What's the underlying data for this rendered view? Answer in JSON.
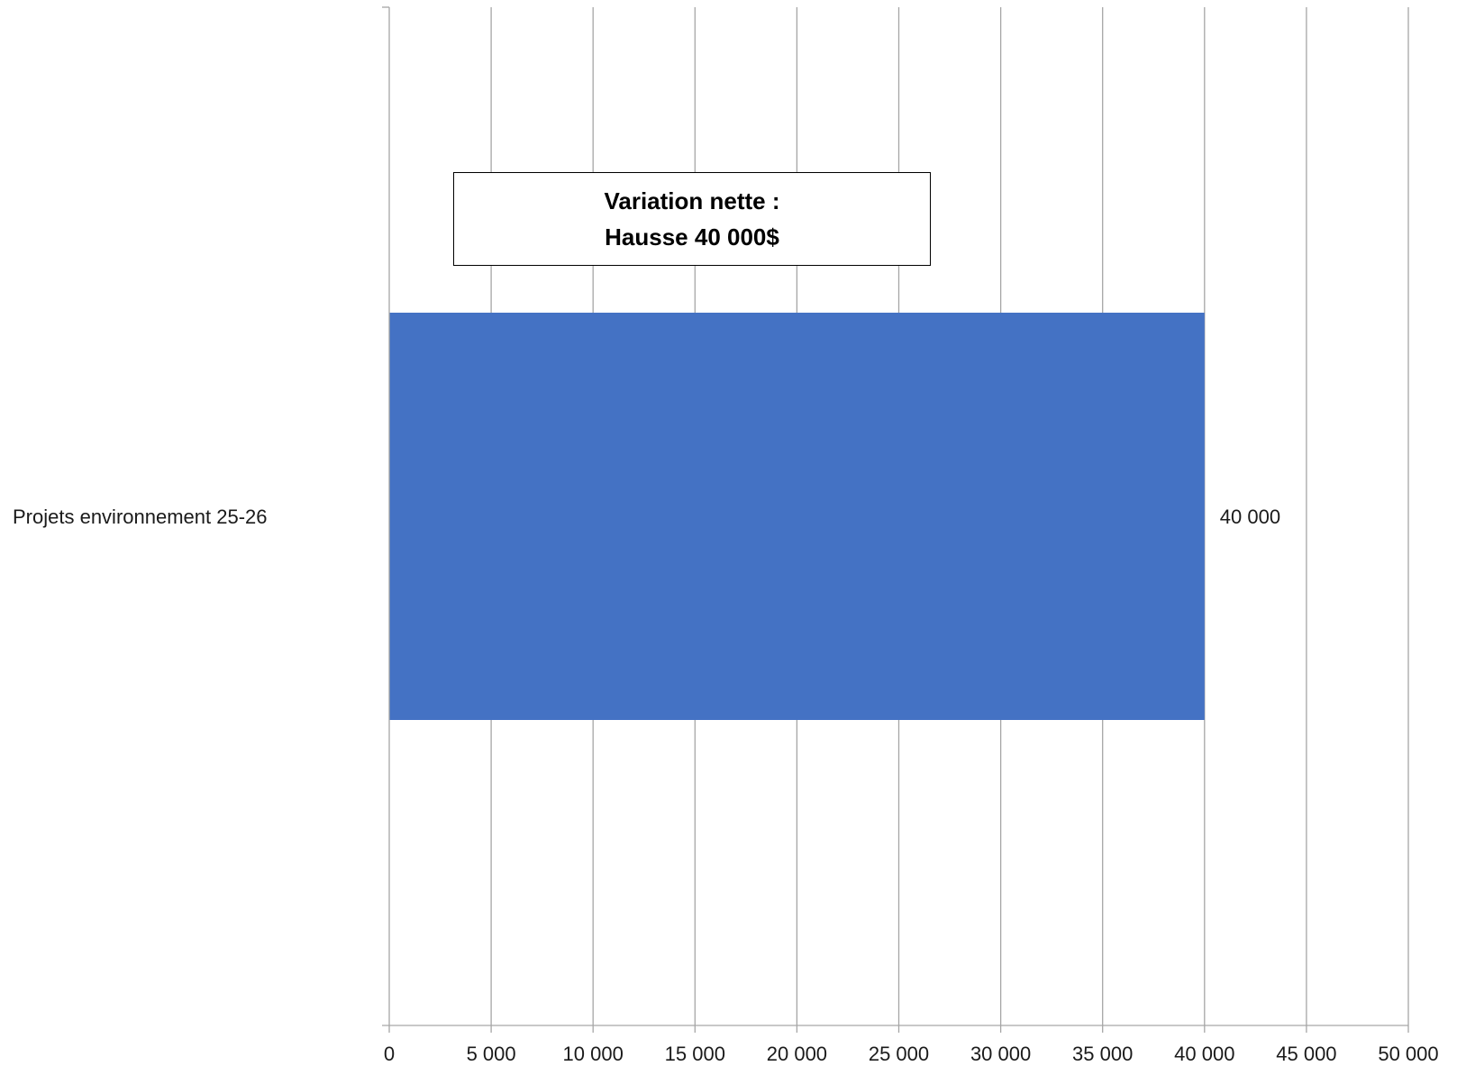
{
  "chart_data": {
    "type": "bar",
    "orientation": "horizontal",
    "categories": [
      "Projets environnement 25-26"
    ],
    "series": [
      {
        "values": [
          40000
        ],
        "color": "#4472C4"
      }
    ],
    "data_labels": [
      "40 000"
    ],
    "x_ticks": [
      0,
      5000,
      10000,
      15000,
      20000,
      25000,
      30000,
      35000,
      40000,
      45000,
      50000
    ],
    "x_tick_labels": [
      "0",
      "5 000",
      "10 000",
      "15 000",
      "20 000",
      "25 000",
      "30 000",
      "35 000",
      "40 000",
      "45 000",
      "50 000"
    ],
    "xlim": [
      0,
      50000
    ],
    "grid": true,
    "legend": "none",
    "annotation": {
      "line1": "Variation nette :",
      "line2": "Hausse 40 000$"
    }
  }
}
